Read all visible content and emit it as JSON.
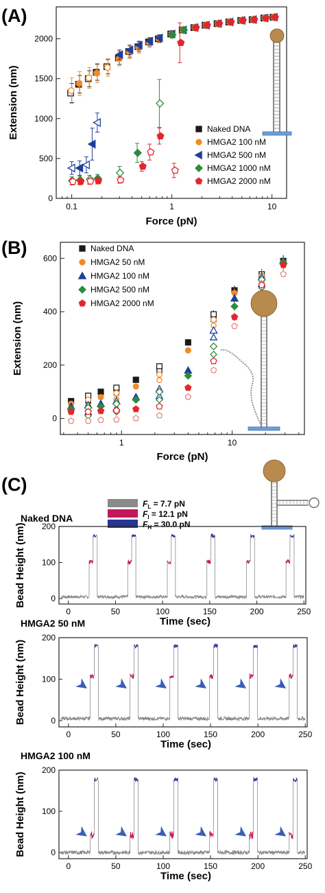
{
  "colors": {
    "black": "#1a1a1a",
    "orange": "#f28a2a",
    "navy": "#1f3f9a",
    "green": "#2e8b3a",
    "red": "#e3262c",
    "pink": "#e28a8a",
    "gray": "#8a8a8a",
    "magenta": "#c2185b",
    "blue": "#283593",
    "bead": "#b98a4e",
    "base": "#6f9fd8",
    "dna": "#7a7a7a"
  },
  "icons": [
    "bead-on-dna-tether-icon",
    "bead-on-hairpin-tether-icon",
    "bead-on-three-way-junction-icon",
    "arrowhead-marker-icon"
  ],
  "panel_a": {
    "label": "(A)",
    "xlabel": "Force (pN)",
    "ylabel": "Extension (nm)",
    "xticks": [
      "0.1",
      "1",
      "10"
    ],
    "yticks": [
      "0",
      "500",
      "1000",
      "1500",
      "2000"
    ],
    "legend": [
      "Naked DNA",
      "HMGA2 100 nM",
      "HMGA2 500 nM",
      "HMGA2 1000 nM",
      "HMGA2 2000 nM"
    ]
  },
  "panel_b": {
    "label": "(B)",
    "xlabel": "Force (pN)",
    "ylabel": "Extension (nm)",
    "xticks": [
      "1",
      "10"
    ],
    "yticks": [
      "0",
      "200",
      "400",
      "600"
    ],
    "legend": [
      "Naked DNA",
      "HMGA2 50 nM",
      "HMGA2 100 nM",
      "HMGA2 500 nM",
      "HMGA2 2000 nM"
    ]
  },
  "panel_c": {
    "label": "(C)",
    "legend": [
      {
        "sym": "F",
        "sub": "L",
        "val": " = 7.7 pN"
      },
      {
        "sym": "F",
        "sub": "I",
        "val": " = 12.1 pN"
      },
      {
        "sym": "F",
        "sub": "H",
        "val": " = 30.0 pN"
      }
    ],
    "traces": [
      {
        "title": "Naked DNA",
        "ylabel": "Bead Height (nm)",
        "xlabel": "Time (sec)",
        "arrows": false
      },
      {
        "title": "HMGA2 50 nM",
        "ylabel": "Bead Height  (nm)",
        "xlabel": "Time (sec)",
        "arrows": true
      },
      {
        "title": "HMGA2 100 nM",
        "ylabel": "Bead Height  (nm)",
        "xlabel": "Time (sec)",
        "arrows": true
      }
    ],
    "xticks": [
      "0",
      "50",
      "100",
      "150",
      "200",
      "250"
    ],
    "yticks": [
      "0",
      "100",
      "200"
    ]
  },
  "chart_data": [
    {
      "type": "scatter",
      "title": "",
      "xlabel": "Force (pN)",
      "ylabel": "Extension (nm)",
      "xscale": "log",
      "xlim": [
        0.07,
        14
      ],
      "ylim": [
        0,
        2400
      ],
      "grid": false,
      "legend_placement": "bottom-right",
      "series": [
        {
          "name": "Naked DNA",
          "marker": "square",
          "color": "black",
          "x": [
            0.1,
            0.12,
            0.15,
            0.18,
            0.23,
            0.3,
            0.38,
            0.47,
            0.6,
            0.75,
            1.0,
            1.3,
            1.7,
            2.2,
            2.9,
            3.8,
            5.0,
            6.5,
            8.5,
            10.5
          ],
          "y": [
            1320,
            1430,
            1500,
            1580,
            1650,
            1760,
            1840,
            1900,
            1960,
            2000,
            2060,
            2110,
            2140,
            2170,
            2190,
            2210,
            2230,
            2240,
            2260,
            2270
          ],
          "err": [
            120,
            110,
            100,
            100,
            90,
            80,
            70,
            60,
            50,
            45,
            40,
            35,
            30,
            25,
            25,
            20,
            20,
            20,
            20,
            20
          ]
        },
        {
          "name": "HMGA2 100 nM",
          "marker": "circle",
          "color": "orange",
          "x": [
            0.1,
            0.12,
            0.15,
            0.18,
            0.23,
            0.3,
            0.38,
            0.47,
            0.6,
            0.75,
            1.0,
            1.3,
            1.7,
            2.2,
            2.9,
            3.8,
            5.0,
            6.5,
            8.5,
            10.5
          ],
          "y": [
            1350,
            1440,
            1510,
            1570,
            1640,
            1750,
            1830,
            1890,
            1950,
            2000,
            2060,
            2110,
            2140,
            2170,
            2190,
            2210,
            2230,
            2240,
            2260,
            2270
          ],
          "err": [
            160,
            150,
            130,
            120,
            110,
            90,
            80,
            70,
            60,
            50,
            45,
            40,
            35,
            30,
            30,
            25,
            25,
            20,
            20,
            20
          ]
        },
        {
          "name": "HMGA2 500 nM",
          "marker": "triangle-left",
          "color": "navy",
          "x": [
            0.1,
            0.12,
            0.14,
            0.16,
            0.18,
            0.3,
            0.38,
            0.47,
            0.6,
            0.75,
            1.0,
            1.3,
            1.7,
            2.2,
            2.9,
            3.8,
            5.0,
            6.5,
            8.5,
            10.5
          ],
          "y": [
            380,
            380,
            420,
            680,
            950,
            1800,
            1860,
            1920,
            1970,
            2010,
            2060,
            2110,
            2140,
            2170,
            2190,
            2210,
            2230,
            2240,
            2260,
            2270
          ],
          "err": [
            80,
            90,
            100,
            200,
            120,
            60,
            60,
            50,
            45,
            40,
            40,
            35,
            30,
            25,
            25,
            20,
            20,
            20,
            20,
            20
          ]
        },
        {
          "name": "HMGA2 1000 nM",
          "marker": "diamond",
          "color": "green",
          "x": [
            0.1,
            0.12,
            0.15,
            0.18,
            0.3,
            0.45,
            0.75,
            1.0,
            1.3,
            1.7,
            2.2,
            2.9,
            3.8,
            5.0,
            6.5,
            8.5,
            10.5
          ],
          "y": [
            220,
            230,
            240,
            250,
            320,
            570,
            1190,
            2050,
            2110,
            2140,
            2170,
            2190,
            2210,
            2230,
            2240,
            2260,
            2270
          ],
          "err": [
            50,
            50,
            50,
            50,
            80,
            120,
            300,
            40,
            35,
            30,
            25,
            25,
            20,
            20,
            20,
            20,
            20
          ]
        },
        {
          "name": "HMGA2 2000 nM",
          "marker": "pentagon",
          "color": "red",
          "x": [
            0.1,
            0.12,
            0.15,
            0.18,
            0.3,
            0.5,
            0.6,
            0.75,
            1.05,
            1.2,
            1.7,
            2.2,
            2.9,
            3.8,
            5.0,
            6.5,
            8.5,
            10.5
          ],
          "y": [
            210,
            210,
            215,
            220,
            230,
            400,
            580,
            780,
            350,
            1950,
            2140,
            2170,
            2190,
            2210,
            2230,
            2240,
            2260,
            2270
          ],
          "err": [
            40,
            40,
            40,
            40,
            40,
            60,
            100,
            100,
            90,
            250,
            30,
            25,
            25,
            20,
            20,
            20,
            20,
            20
          ]
        }
      ]
    },
    {
      "type": "scatter",
      "title": "",
      "xlabel": "Force (pN)",
      "ylabel": "Extension (nm)",
      "xscale": "log",
      "xlim": [
        0.28,
        45
      ],
      "ylim": [
        -60,
        660
      ],
      "grid": false,
      "legend_placement": "top-left",
      "series": [
        {
          "name": "Naked DNA",
          "marker": "square",
          "color": "black",
          "x": [
            0.35,
            0.5,
            0.65,
            0.9,
            1.35,
            2.2,
            4.0,
            6.8,
            10.5,
            18.5,
            29
          ],
          "y": [
            65,
            85,
            100,
            115,
            145,
            195,
            285,
            390,
            480,
            540,
            590
          ]
        },
        {
          "name": "HMGA2 50 nM",
          "marker": "circle",
          "color": "orange",
          "x": [
            0.35,
            0.5,
            0.65,
            0.9,
            1.35,
            2.2,
            4.0,
            6.8,
            10.5,
            18.5,
            29
          ],
          "y": [
            55,
            70,
            80,
            95,
            120,
            165,
            255,
            370,
            470,
            535,
            585
          ]
        },
        {
          "name": "HMGA2 100 nM",
          "marker": "triangle-up",
          "color": "navy",
          "x": [
            0.35,
            0.5,
            0.65,
            0.9,
            1.35,
            2.2,
            4.0,
            6.8,
            10.5,
            18.5,
            29
          ],
          "y": [
            45,
            50,
            55,
            65,
            80,
            110,
            180,
            330,
            450,
            530,
            590
          ]
        },
        {
          "name": "HMGA2 500 nM",
          "marker": "diamond",
          "color": "green",
          "x": [
            0.35,
            0.5,
            0.65,
            0.9,
            1.35,
            2.2,
            4.0,
            6.8,
            10.5,
            18.5,
            29
          ],
          "y": [
            35,
            40,
            45,
            55,
            70,
            100,
            160,
            270,
            420,
            520,
            585
          ]
        },
        {
          "name": "HMGA2 2000 nM",
          "marker": "pentagon",
          "color": "red",
          "x": [
            0.35,
            0.5,
            0.65,
            0.9,
            1.35,
            2.2,
            4.0,
            6.8,
            10.5,
            18.5,
            29
          ],
          "y": [
            25,
            25,
            28,
            30,
            35,
            45,
            115,
            215,
            380,
            500,
            575
          ]
        }
      ]
    },
    {
      "type": "line",
      "title": "Naked DNA",
      "xlabel": "Time (sec)",
      "ylabel": "Bead Height (nm)",
      "xlim": [
        -10,
        252
      ],
      "ylim": [
        -15,
        200
      ],
      "pulse_starts_sec": [
        22,
        63,
        105,
        147,
        189,
        231
      ],
      "levels_nm": {
        "F_L = 7.7 pN": 5,
        "F_I = 12.1 pN": 102,
        "F_H = 30.0 pN": 174
      }
    },
    {
      "type": "line",
      "title": "HMGA2 50 nM",
      "xlabel": "Time (sec)",
      "ylabel": "Bead Height (nm)",
      "xlim": [
        -10,
        252
      ],
      "ylim": [
        -15,
        200
      ],
      "pulse_starts_sec": [
        23,
        65,
        107,
        149,
        191,
        233
      ],
      "levels_nm": {
        "F_L = 7.7 pN": 5,
        "F_I = 12.1 pN": 107,
        "F_H = 30.0 pN": 180
      }
    },
    {
      "type": "line",
      "title": "HMGA2 100 nM",
      "xlabel": "Time (sec)",
      "ylabel": "Bead Height (nm)",
      "xlim": [
        -10,
        252
      ],
      "ylim": [
        -15,
        200
      ],
      "pulse_starts_sec": [
        23,
        65,
        107,
        149,
        191,
        233
      ],
      "levels_nm": {
        "F_L = 7.7 pN": 0,
        "F_I = 12.1 pN": 42,
        "F_H = 30.0 pN": 177
      }
    }
  ]
}
